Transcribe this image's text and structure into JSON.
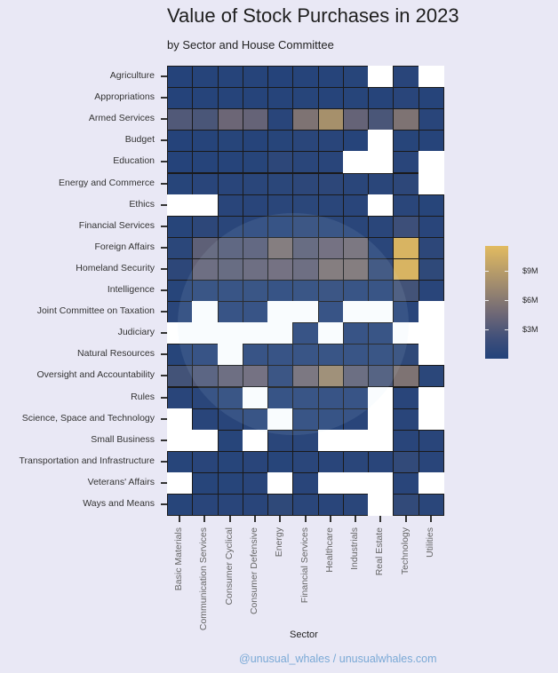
{
  "title": "Value of Stock Purchases in 2023",
  "subtitle": "by Sector and House Committee",
  "footer": "@unusual_whales / unusualwhales.com",
  "chart_data": {
    "type": "heatmap",
    "title": "Value of Stock Purchases in 2023",
    "subtitle": "by Sector and House Committee",
    "xlabel": "Sector",
    "ylabel": "",
    "x": [
      "Basic Materials",
      "Communication Services",
      "Consumer Cyclical",
      "Consumer Defensive",
      "Energy",
      "Financial Services",
      "Healthcare",
      "Industrials",
      "Real Estate",
      "Technology",
      "Utilities"
    ],
    "y": [
      "Agriculture",
      "Appropriations",
      "Armed Services",
      "Budget",
      "Education",
      "Energy and Commerce",
      "Ethics",
      "Financial Services",
      "Foreign Affairs",
      "Homeland Security",
      "Intelligence",
      "Joint Committee on Taxation",
      "Judiciary",
      "Natural Resources",
      "Oversight and Accountability",
      "Rules",
      "Science, Space and Technology",
      "Small Business",
      "Transportation and Infrastructure",
      "Veterans' Affairs",
      "Ways and Means"
    ],
    "units": "USD millions (estimated from color); null = no purchases",
    "values": [
      [
        0.2,
        0.3,
        0.3,
        0.3,
        0.2,
        0.3,
        0.3,
        0.4,
        null,
        0.5,
        null
      ],
      [
        0.2,
        0.3,
        0.3,
        0.3,
        0.3,
        0.4,
        0.3,
        0.4,
        0.3,
        0.5,
        0.3
      ],
      [
        3.5,
        3.0,
        5.5,
        5.0,
        0.5,
        6.5,
        8.5,
        5.0,
        3.0,
        6.5,
        0.5
      ],
      [
        0.2,
        0.3,
        0.4,
        0.3,
        0.4,
        0.6,
        0.5,
        0.3,
        null,
        0.4,
        0.3
      ],
      [
        0.2,
        0.3,
        0.3,
        0.4,
        0.8,
        0.6,
        0.5,
        null,
        null,
        0.5,
        null
      ],
      [
        0.4,
        0.5,
        0.5,
        0.6,
        0.7,
        0.8,
        0.8,
        0.6,
        0.6,
        0.8,
        null
      ],
      [
        null,
        null,
        0.5,
        0.5,
        0.6,
        0.7,
        0.6,
        0.5,
        null,
        0.6,
        0.4
      ],
      [
        0.4,
        0.8,
        0.6,
        0.5,
        0.4,
        0.9,
        0.7,
        0.6,
        0.6,
        2.0,
        0.5
      ],
      [
        0.7,
        4.5,
        3.8,
        4.0,
        6.5,
        4.5,
        5.5,
        6.0,
        0.6,
        11.0,
        0.8
      ],
      [
        0.8,
        5.0,
        4.5,
        5.0,
        5.5,
        5.0,
        6.5,
        6.5,
        1.5,
        11.0,
        1.0
      ],
      [
        0.4,
        0.7,
        0.6,
        0.7,
        0.4,
        0.7,
        0.8,
        0.6,
        0.6,
        2.5,
        0.5
      ],
      [
        0.6,
        null,
        0.5,
        0.5,
        null,
        null,
        0.5,
        null,
        null,
        0.5,
        null
      ],
      [
        null,
        null,
        null,
        null,
        null,
        0.5,
        null,
        0.5,
        0.6,
        null,
        null
      ],
      [
        0.4,
        0.5,
        null,
        0.5,
        0.5,
        0.6,
        0.6,
        0.6,
        0.7,
        1.0,
        null
      ],
      [
        2.5,
        3.5,
        5.0,
        5.5,
        0.8,
        6.0,
        8.0,
        4.8,
        3.0,
        6.5,
        0.7
      ],
      [
        0.5,
        0.6,
        0.7,
        null,
        0.4,
        0.6,
        0.5,
        0.5,
        null,
        0.5,
        null
      ],
      [
        null,
        0.5,
        0.5,
        0.6,
        null,
        0.6,
        0.4,
        0.5,
        null,
        0.5,
        null
      ],
      [
        null,
        null,
        0.4,
        null,
        0.6,
        0.6,
        null,
        null,
        null,
        0.5,
        0.5
      ],
      [
        0.4,
        0.5,
        0.4,
        0.5,
        0.4,
        0.6,
        0.5,
        0.6,
        0.5,
        1.2,
        0.5
      ],
      [
        null,
        0.4,
        0.4,
        0.5,
        null,
        0.5,
        null,
        null,
        null,
        0.5,
        null
      ],
      [
        0.4,
        0.5,
        0.5,
        0.5,
        1.0,
        0.6,
        0.5,
        0.6,
        null,
        1.2,
        0.6
      ]
    ],
    "colorscale": {
      "low": "#22427a",
      "mid": "#6f6876",
      "high": "#e2bb60",
      "min": 0,
      "max": 11.5
    },
    "legend": {
      "type": "colorbar",
      "position": "right",
      "ticks": [
        "$3M",
        "$6M",
        "$9M"
      ],
      "tick_values": [
        3,
        6,
        9
      ]
    },
    "grid": false
  }
}
